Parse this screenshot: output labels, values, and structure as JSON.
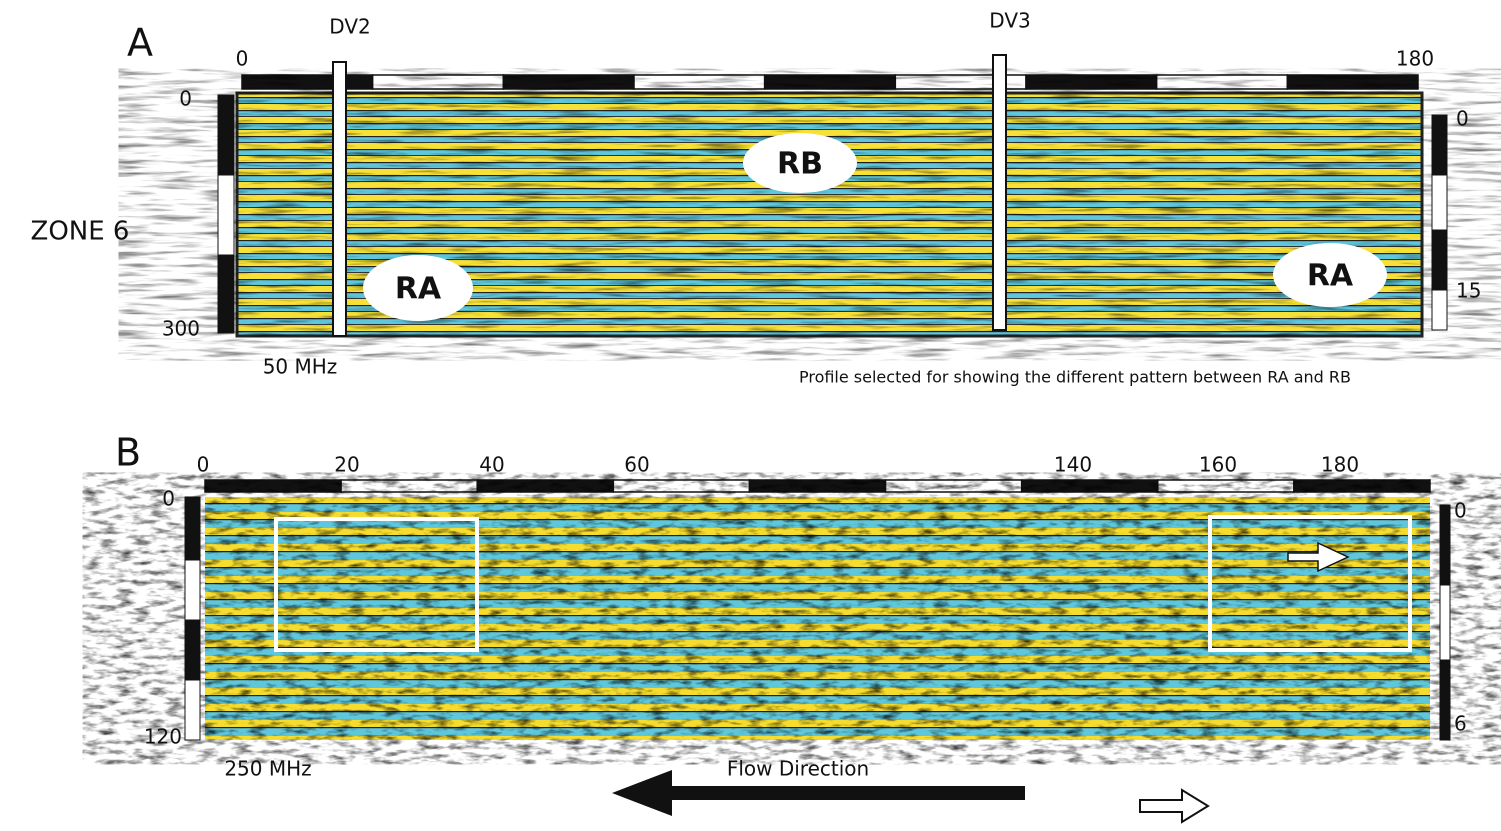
{
  "panel_a": {
    "label": "A",
    "markers": [
      "DV2",
      "DV3"
    ],
    "top_axis": {
      "start": "0",
      "end": "180"
    },
    "left_axis": {
      "top": "0",
      "bottom": "300"
    },
    "right_axis": {
      "top": "0",
      "bottom": "15"
    },
    "zone_label": "ZONE 6",
    "regions": [
      "RB",
      "RA",
      "RA"
    ],
    "frequency": "50 MHz",
    "caption": "Profile selected for showing the different pattern between RA and RB"
  },
  "panel_b": {
    "label": "B",
    "top_axis": [
      "0",
      "20",
      "40",
      "60",
      "140",
      "160",
      "180"
    ],
    "left_axis": {
      "top": "0",
      "bottom": "120"
    },
    "right_axis": {
      "top": "0",
      "bottom": "6"
    },
    "frequency": "250 MHz",
    "flow_label": "Flow Direction"
  }
}
